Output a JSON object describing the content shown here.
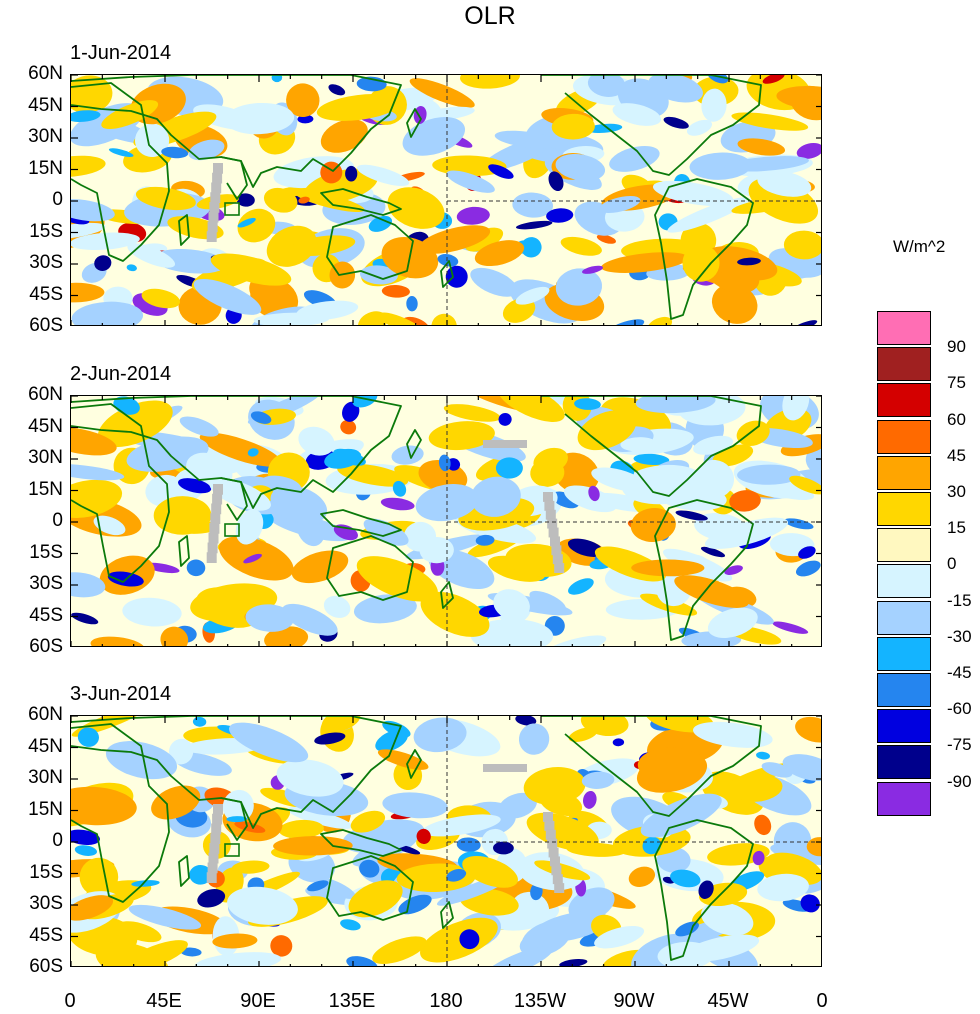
{
  "title": "OLR",
  "chart_data": {
    "type": "heatmap",
    "title": "OLR",
    "units": "W/m^2",
    "xlim": [
      0,
      360
    ],
    "ylim": [
      -60,
      60
    ],
    "lat_ticks": [
      "60N",
      "45N",
      "30N",
      "15N",
      "0",
      "15S",
      "30S",
      "45S",
      "60S"
    ],
    "lon_ticks": [
      "0",
      "45E",
      "90E",
      "135E",
      "180",
      "135W",
      "90W",
      "45W",
      "0"
    ],
    "panels": [
      {
        "date": "1-Jun-2014"
      },
      {
        "date": "2-Jun-2014"
      },
      {
        "date": "3-Jun-2014"
      }
    ],
    "colorbar": {
      "levels": [
        "90",
        "75",
        "60",
        "45",
        "30",
        "15",
        "0",
        "-15",
        "-30",
        "-45",
        "-60",
        "-75",
        "-90"
      ],
      "colors": [
        "#ff6eb4",
        "#a02020",
        "#d40000",
        "#ff6a00",
        "#ffa500",
        "#ffd700",
        "#fff8c0",
        "#d6f4ff",
        "#a5d2ff",
        "#14b4ff",
        "#2585ef",
        "#0000e0",
        "#00008c",
        "#8a2be2"
      ]
    }
  }
}
